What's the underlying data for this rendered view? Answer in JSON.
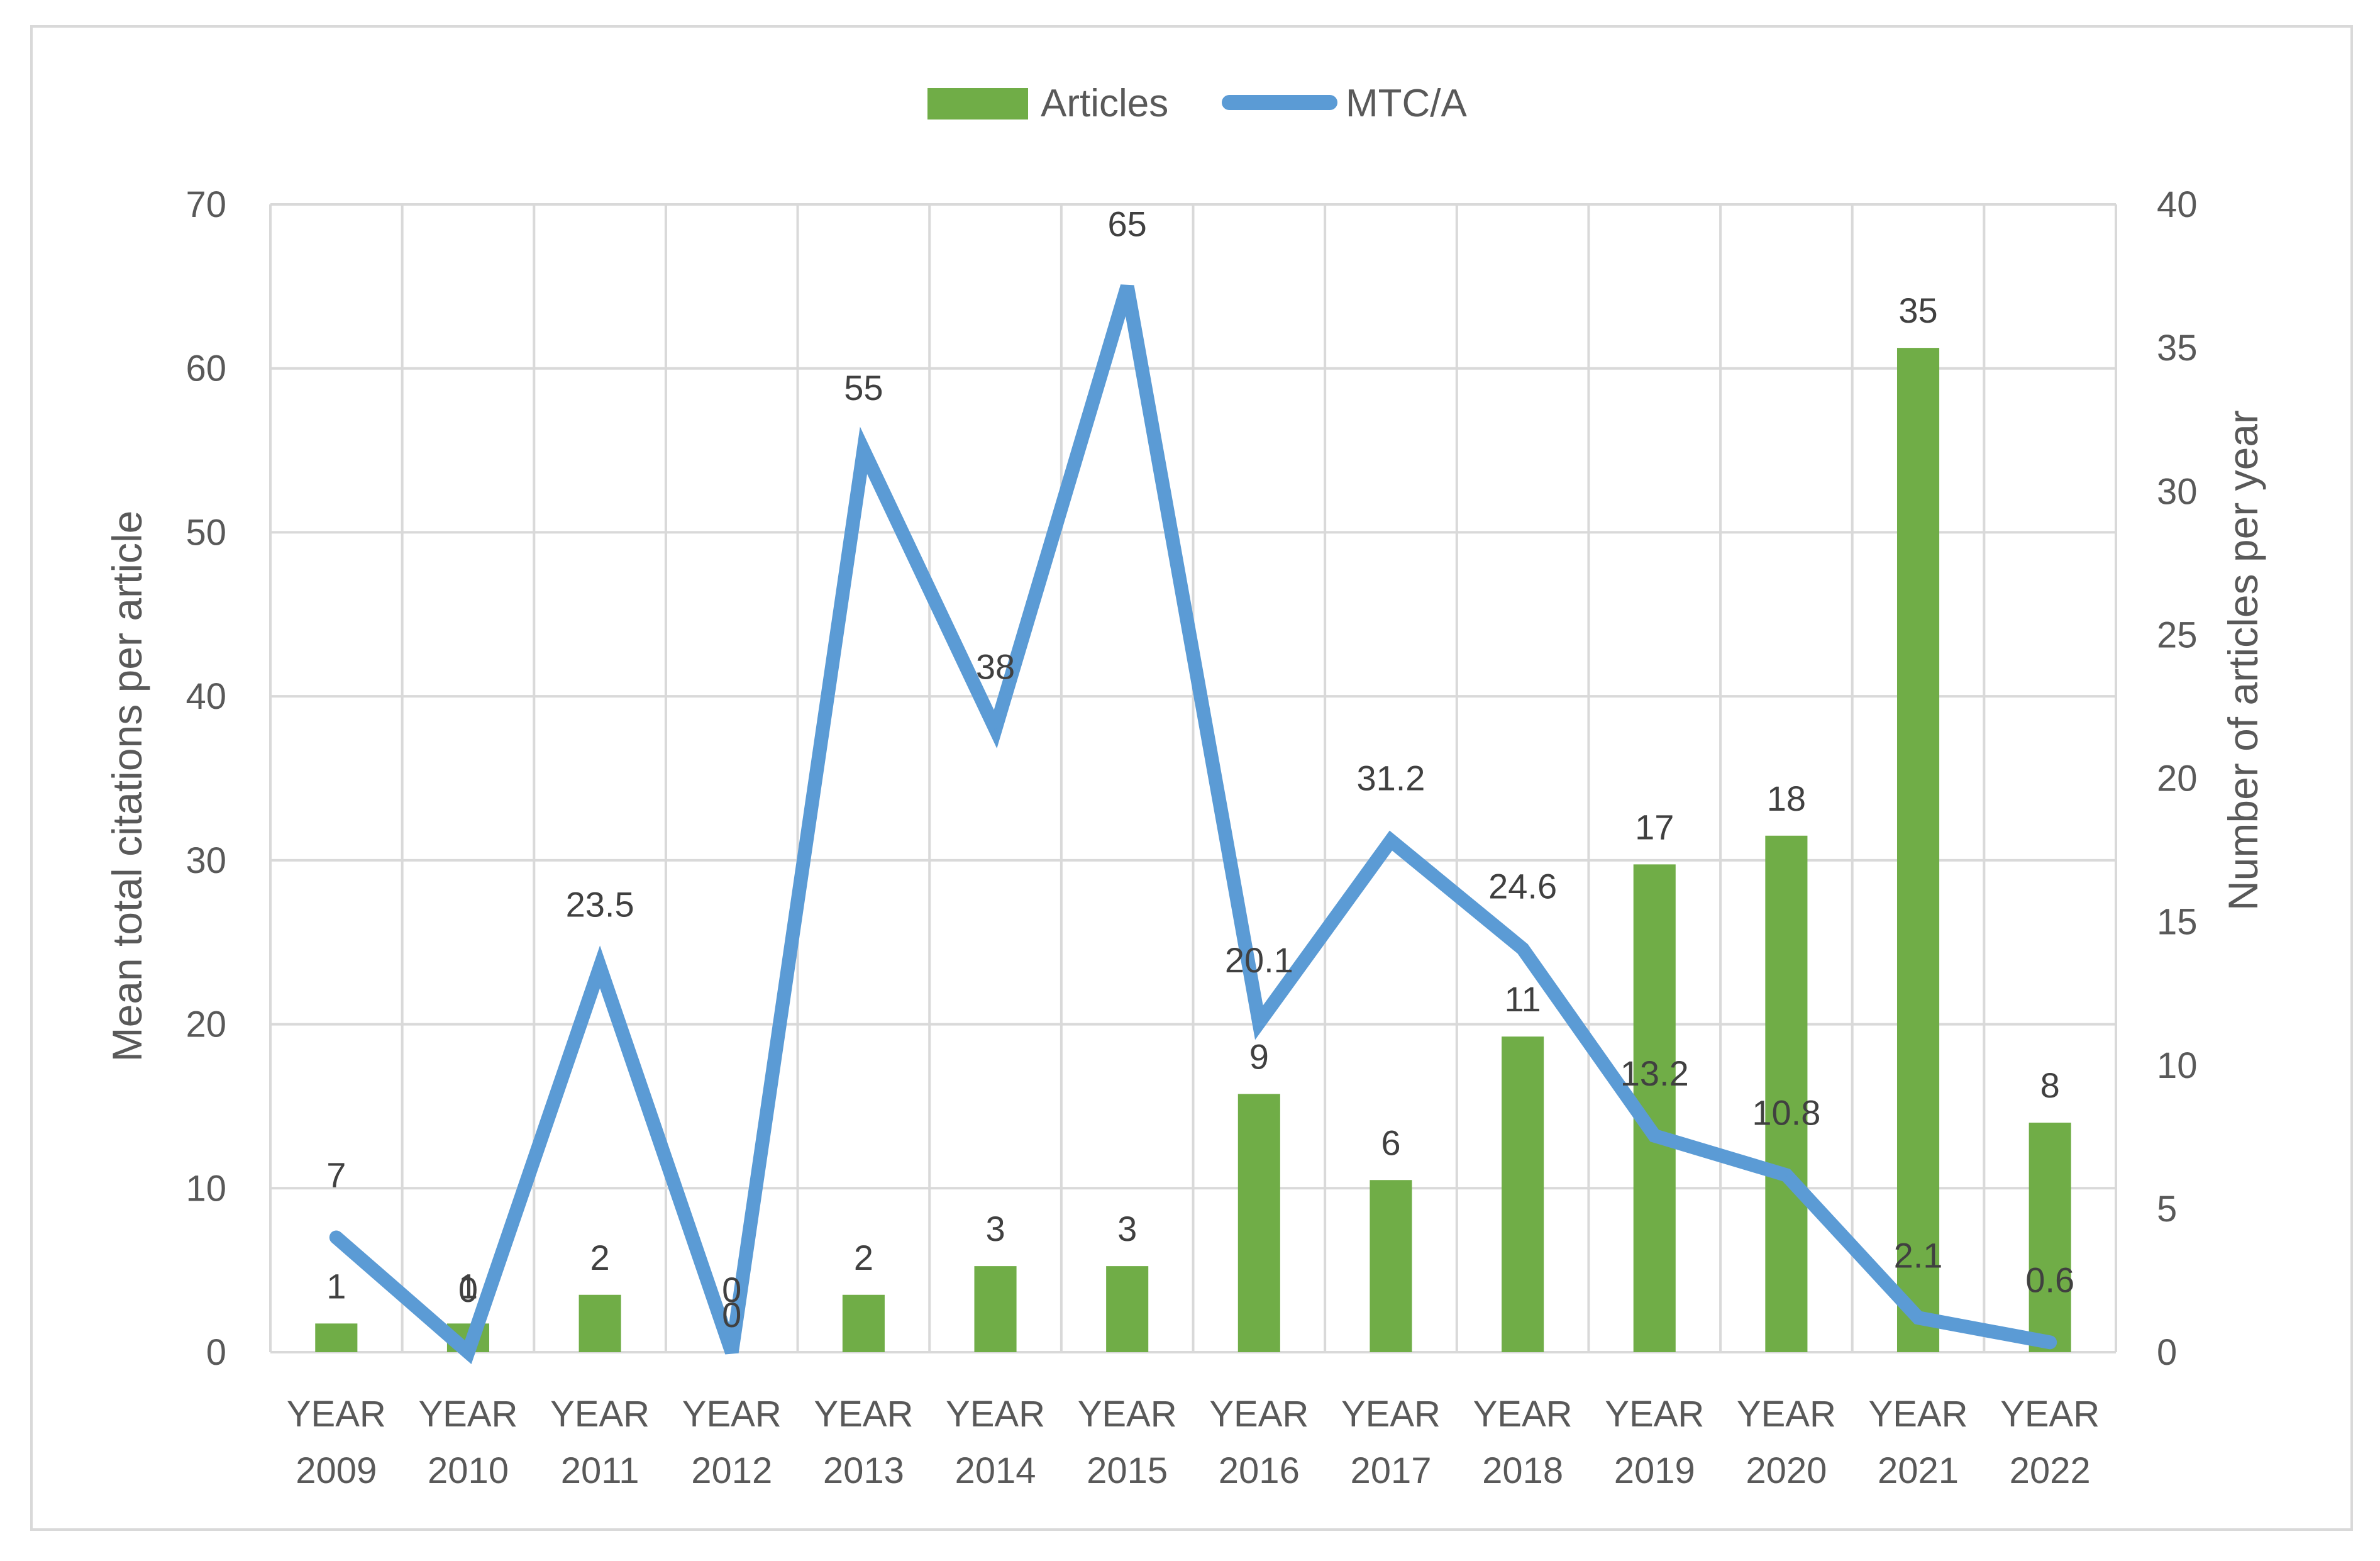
{
  "chart_data": {
    "type": "bar+line",
    "title": "",
    "categories": [
      [
        "YEAR",
        "2009"
      ],
      [
        "YEAR",
        "2010"
      ],
      [
        "YEAR",
        "2011"
      ],
      [
        "YEAR",
        "2012"
      ],
      [
        "YEAR",
        "2013"
      ],
      [
        "YEAR",
        "2014"
      ],
      [
        "YEAR",
        "2015"
      ],
      [
        "YEAR",
        "2016"
      ],
      [
        "YEAR",
        "2017"
      ],
      [
        "YEAR",
        "2018"
      ],
      [
        "YEAR",
        "2019"
      ],
      [
        "YEAR",
        "2020"
      ],
      [
        "YEAR",
        "2021"
      ],
      [
        "YEAR",
        "2022"
      ]
    ],
    "series": [
      {
        "name": "Articles",
        "kind": "bar",
        "axis": "right",
        "color": "#70ad47",
        "values": [
          1,
          1,
          2,
          0,
          2,
          3,
          3,
          9,
          6,
          11,
          17,
          18,
          35,
          8
        ],
        "labels": [
          "1",
          "1",
          "2",
          "0",
          "2",
          "3",
          "3",
          "9",
          "6",
          "11",
          "17",
          "18",
          "35",
          "8"
        ]
      },
      {
        "name": "MTC/A",
        "kind": "line",
        "axis": "left",
        "color": "#5b9bd5",
        "values": [
          7,
          0,
          23.5,
          0,
          55,
          38,
          65,
          20.1,
          31.2,
          24.6,
          13.2,
          10.8,
          2.1,
          0.6
        ],
        "labels": [
          "7",
          "0",
          "23.5",
          "0",
          "55",
          "38",
          "65",
          "20.1",
          "31.2",
          "24.6",
          "13.2",
          "10.8",
          "2.1",
          "0.6"
        ]
      }
    ],
    "y_left": {
      "label": "Mean total citations per article",
      "ylim": [
        0,
        70
      ],
      "ticks": [
        "0",
        "10",
        "20",
        "30",
        "40",
        "50",
        "60",
        "70"
      ]
    },
    "y_right": {
      "label": "Number of articles per year",
      "ylim": [
        0,
        40
      ],
      "ticks": [
        "0",
        "5",
        "10",
        "15",
        "20",
        "25",
        "30",
        "35",
        "40"
      ]
    },
    "legend": {
      "position": "top-center",
      "entries": [
        "Articles",
        "MTC/A"
      ]
    },
    "grid": true
  }
}
